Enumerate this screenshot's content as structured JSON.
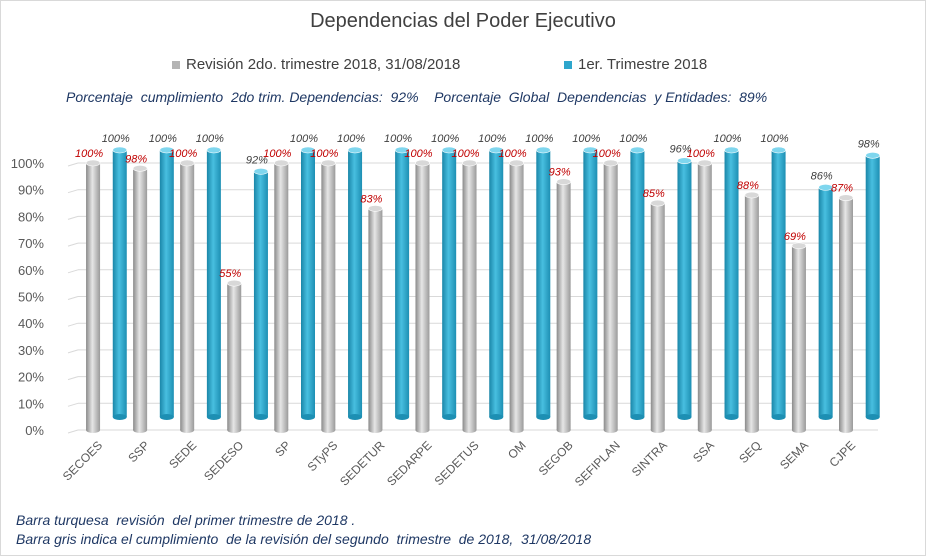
{
  "chart_data": {
    "type": "bar",
    "title": "Dependencias del Poder Ejecutivo",
    "categories": [
      "SECOES",
      "SSP",
      "SEDE",
      "SEDESO",
      "SP",
      "STyPS",
      "SEDETUR",
      "SEDARPE",
      "SEDETUS",
      "OM",
      "SEGOB",
      "SEFIPLAN",
      "SINTRA",
      "SSA",
      "SEQ",
      "SEMA",
      "CJPE"
    ],
    "series": [
      {
        "name": "Revisión 2do. trimestre 2018, 31/08/2018",
        "color": "#b4b4b4",
        "values": [
          100,
          98,
          100,
          55,
          100,
          100,
          83,
          100,
          100,
          100,
          93,
          100,
          85,
          100,
          88,
          69,
          87
        ],
        "labels": [
          "100%",
          "98%",
          "100%",
          "55%",
          "100%",
          "100%",
          "83%",
          "100%",
          "100%",
          "100%",
          "93%",
          "100%",
          "85%",
          "100%",
          "88%",
          "69%",
          "87%"
        ]
      },
      {
        "name": "1er. Trimestre 2018",
        "color": "#2ea6cc",
        "values": [
          100,
          100,
          100,
          92,
          100,
          100,
          100,
          100,
          100,
          100,
          100,
          100,
          96,
          100,
          100,
          86,
          98
        ],
        "labels": [
          "100%",
          "100%",
          "100%",
          "92%",
          "100%",
          "100%",
          "100%",
          "100%",
          "100%",
          "100%",
          "100%",
          "100%",
          "96%",
          "100%",
          "100%",
          "86%",
          "98%"
        ]
      }
    ],
    "y_ticks": [
      "0%",
      "10%",
      "20%",
      "30%",
      "40%",
      "50%",
      "60%",
      "70%",
      "80%",
      "90%",
      "100%"
    ],
    "ylim": [
      0,
      100
    ],
    "grid": true,
    "legend_position": "top"
  },
  "summary_text": "Porcentaje  cumplimiento  2do trim. Dependencias:  92%    Porcentaje  Global  Dependencias  y Entidades:  89%",
  "notes": {
    "line1": "Barra turquesa  revisión  del primer trimestre de 2018 .",
    "line2": "Barra gris indica el cumplimiento  de la revisión del segundo  trimestre  de 2018,  31/08/2018"
  },
  "colors": {
    "gray_label": "#c00000",
    "blue_label": "#404040"
  }
}
